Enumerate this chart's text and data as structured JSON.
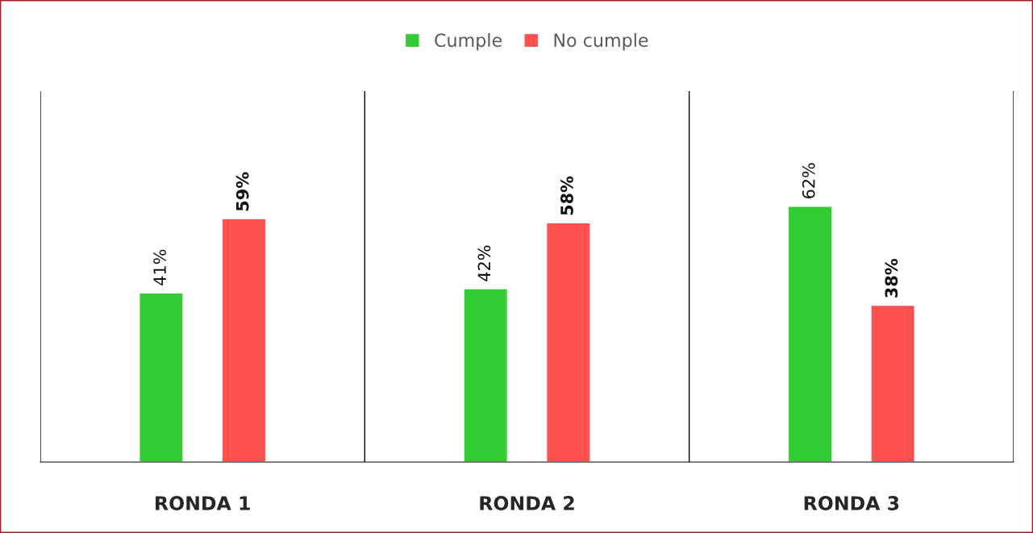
{
  "chart_data": {
    "type": "bar",
    "categories": [
      "RONDA 1",
      "RONDA 2",
      "RONDA 3"
    ],
    "series": [
      {
        "name": "Cumple",
        "color": "#33cc33",
        "values": [
          41,
          42,
          62
        ],
        "value_labels": [
          "41%",
          "42%",
          "62%"
        ]
      },
      {
        "name": "No cumple",
        "color": "#ff5050",
        "values": [
          59,
          58,
          38
        ],
        "value_labels": [
          "59%",
          "58%",
          "38%"
        ]
      }
    ],
    "grid": "x",
    "legend": "top",
    "tick_labels": "x"
  }
}
